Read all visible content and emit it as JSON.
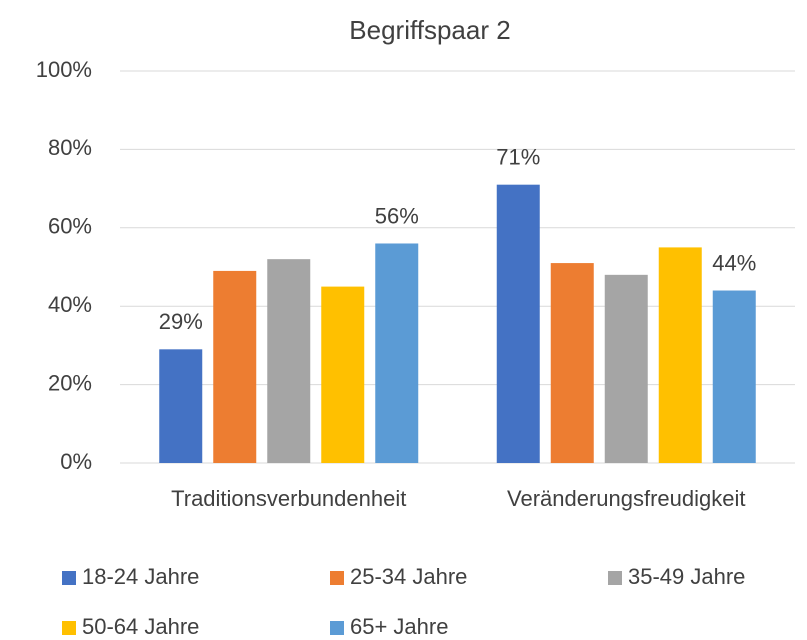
{
  "chart_data": {
    "type": "bar",
    "title": "Begriffspaar 2",
    "categories": [
      "Traditionsverbundenheit",
      "Veränderungsfreudigkeit"
    ],
    "series": [
      {
        "name": "18-24 Jahre",
        "color": "#4472c4",
        "values": [
          29,
          71
        ],
        "value_labels": [
          "29%",
          "71%"
        ]
      },
      {
        "name": "25-34 Jahre",
        "color": "#ed7d31",
        "values": [
          49,
          51
        ]
      },
      {
        "name": "35-49 Jahre",
        "color": "#a5a5a5",
        "values": [
          52,
          48
        ]
      },
      {
        "name": "50-64 Jahre",
        "color": "#ffc000",
        "values": [
          45,
          55
        ]
      },
      {
        "name": "65+ Jahre",
        "color": "#5b9bd5",
        "values": [
          56,
          44
        ],
        "value_labels": [
          "56%",
          "44%"
        ]
      }
    ],
    "ylim": [
      0,
      100
    ],
    "yticks": [
      {
        "value": 0,
        "label": "0%"
      },
      {
        "value": 20,
        "label": "20%"
      },
      {
        "value": 40,
        "label": "40%"
      },
      {
        "value": 60,
        "label": "60%"
      },
      {
        "value": 80,
        "label": "80%"
      },
      {
        "value": 100,
        "label": "100%"
      }
    ],
    "grid": true,
    "legend": "bottom"
  }
}
